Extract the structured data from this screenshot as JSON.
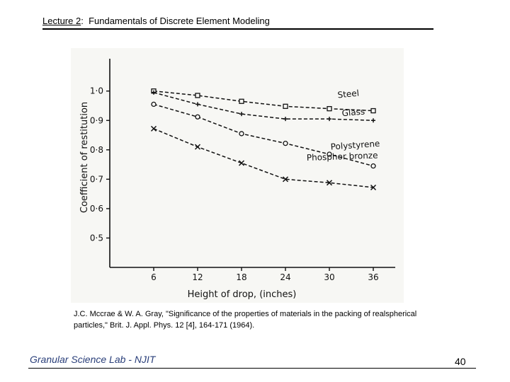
{
  "header": {
    "lecture_label": "Lecture 2",
    "separator": ":",
    "lecture_title": "Fundamentals of Discrete Element Modeling"
  },
  "chart_data": {
    "type": "line",
    "title": "",
    "xlabel": "Height of drop, (inches)",
    "ylabel": "Coefficient of restitution",
    "x": [
      6,
      12,
      18,
      24,
      30,
      36
    ],
    "x_ticks": [
      "6",
      "12",
      "18",
      "24",
      "30",
      "36"
    ],
    "y_ticks": [
      "1·0",
      "0·9",
      "0·8",
      "0·7",
      "0·6",
      "0·5"
    ],
    "xlim": [
      0,
      39
    ],
    "ylim": [
      0.4,
      1.11
    ],
    "grid": false,
    "series": [
      {
        "name": "Steel",
        "marker": "square",
        "values": [
          1.0,
          0.985,
          0.965,
          0.948,
          0.94,
          0.933
        ]
      },
      {
        "name": "Glass",
        "marker": "plus",
        "values": [
          0.995,
          0.955,
          0.922,
          0.905,
          0.905,
          0.9
        ]
      },
      {
        "name": "Polystyrene",
        "marker": "circle",
        "values": [
          0.955,
          0.912,
          0.855,
          0.822,
          0.785,
          0.745
        ]
      },
      {
        "name": "Phosphor bronze",
        "marker": "cross",
        "values": [
          0.872,
          0.81,
          0.755,
          0.7,
          0.688,
          0.672
        ]
      }
    ]
  },
  "citation": "J.C. Mccrae & W. A. Gray, \"Significance of the properties of materials in the packing of realspherical particles,\" Brit. J. Appl. Phys. 12 [4], 164-171 (1964).",
  "footer": {
    "lab_name": "Granular Science Lab",
    "separator": " - ",
    "institution": "NJIT",
    "page_number": "40"
  }
}
